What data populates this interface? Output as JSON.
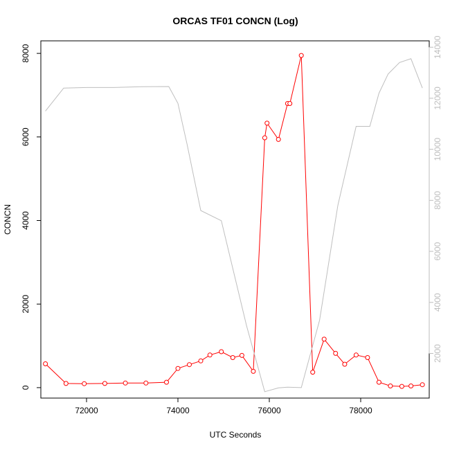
{
  "chart_data": {
    "type": "line",
    "title": "ORCAS TF01 CONCN (Log)",
    "xlabel": "UTC Seconds",
    "ylabel": "CONCN",
    "y2label": "",
    "xlim": [
      71000,
      79500
    ],
    "ylim": [
      -250,
      8300
    ],
    "y2lim": [
      250,
      14250
    ],
    "xticks": [
      72000,
      74000,
      76000,
      78000
    ],
    "xtick_labels": [
      "72000",
      "74000",
      "76000",
      "78000"
    ],
    "yticks": [
      0,
      2000,
      4000,
      6000,
      8000
    ],
    "ytick_labels": [
      "0",
      "2000",
      "4000",
      "6000",
      "8000"
    ],
    "y2ticks": [
      2000,
      4000,
      6000,
      8000,
      10000,
      12000,
      14000
    ],
    "y2tick_labels": [
      "2000",
      "4000",
      "6000",
      "8000",
      "10000",
      "12000",
      "14000"
    ],
    "grid": false,
    "colors": {
      "concn": "#ff0000",
      "secondary": "#bebebe",
      "axes": "#000000"
    },
    "series": [
      {
        "axis": "left",
        "marker": "open-circle",
        "x": [
          71100,
          71550,
          71950,
          72400,
          72850,
          73300,
          73750,
          74000,
          74250,
          74500,
          74700,
          74950,
          75200,
          75400,
          75650,
          75900,
          75950,
          76200,
          76400,
          76450,
          76700,
          76950,
          77200,
          77450,
          77650,
          77900,
          78150,
          78400,
          78650,
          78900,
          79100,
          79350
        ],
        "y": [
          570,
          100,
          95,
          100,
          110,
          110,
          130,
          460,
          550,
          640,
          780,
          860,
          720,
          770,
          390,
          5980,
          6330,
          5940,
          6800,
          6800,
          7950,
          370,
          1160,
          820,
          560,
          780,
          720,
          130,
          40,
          30,
          40,
          70
        ]
      },
      {
        "axis": "right",
        "marker": "none",
        "x": [
          71100,
          71500,
          72000,
          72600,
          73200,
          73800,
          74000,
          74200,
          74500,
          74950,
          75500,
          75900,
          76200,
          76400,
          76700,
          77100,
          77500,
          77900,
          78200,
          78400,
          78600,
          78850,
          79100,
          79350
        ],
        "y": [
          11500,
          12400,
          12420,
          12420,
          12450,
          12460,
          11800,
          10200,
          7600,
          7200,
          3100,
          500,
          650,
          680,
          660,
          3300,
          7800,
          10900,
          10900,
          12200,
          12950,
          13400,
          13550,
          12400
        ]
      }
    ]
  }
}
